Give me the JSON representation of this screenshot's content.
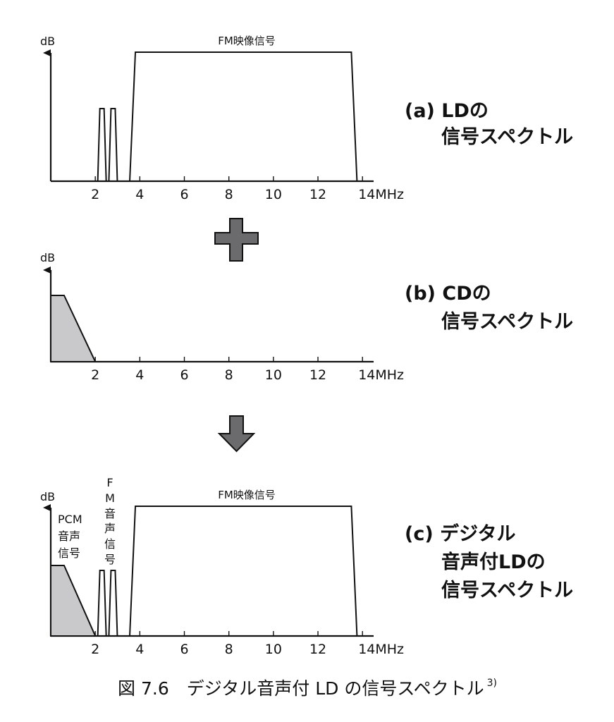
{
  "panels": [
    {
      "id": "a",
      "ylabel": "dB",
      "signal_label": "FM映像信号",
      "caption_lines": [
        "(a) LDの",
        "信号スペクトル"
      ],
      "has_pcm": false,
      "has_fm_audio": true,
      "has_video": true
    },
    {
      "id": "b",
      "ylabel": "dB",
      "caption_lines": [
        "(b) CDの",
        "信号スペクトル"
      ],
      "has_pcm": true,
      "has_fm_audio": false,
      "has_video": false
    },
    {
      "id": "c",
      "ylabel": "dB",
      "signal_label": "FM映像信号",
      "pcm_label": [
        "PCM",
        "音声",
        "信号"
      ],
      "fm_audio_label": [
        "F",
        "M",
        "音",
        "声",
        "信",
        "号"
      ],
      "caption_lines": [
        "(c) デジタル",
        "音声付LDの",
        "信号スペクトル"
      ],
      "has_pcm": true,
      "has_fm_audio": true,
      "has_video": true
    }
  ],
  "x_ticks": [
    "2",
    "4",
    "6",
    "8",
    "10",
    "12",
    "14MHz"
  ],
  "tick_values": [
    2,
    4,
    6,
    8,
    10,
    12,
    14
  ],
  "x_range": [
    0,
    14.5
  ],
  "spectrum": {
    "fm_audio_peaks_mhz": [
      2.3,
      2.8
    ],
    "video_band_mhz": [
      3.8,
      13.5
    ],
    "pcm_band_mhz": [
      0,
      2
    ]
  },
  "operator_icons": [
    "plus-icon",
    "arrow-down-icon"
  ],
  "colors": {
    "pcm_fill": "#c9c9cb",
    "icon_fill": "#6b6b6d",
    "line": "#111111"
  },
  "figure_caption": {
    "text": "図 7.6　デジタル音声付 LD の信号スペクトル",
    "superscript": "3)"
  }
}
